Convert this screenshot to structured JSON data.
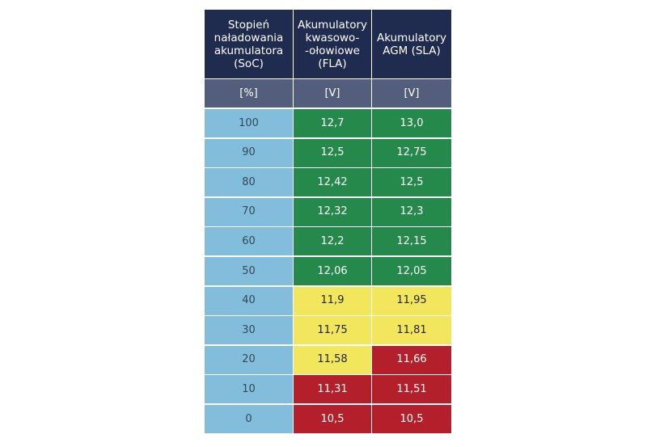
{
  "table": {
    "header": [
      "Stopień\nnaładowania\nakumulatora\n(SoC)",
      "Akumulatory\nkwasowo-\n-ołowiowe\n(FLA)",
      "Akumulatory\nAGM (SLA)"
    ],
    "units": [
      "[%]",
      "[V]",
      "[V]"
    ],
    "rows": [
      [
        "100",
        "12,7",
        "13,0"
      ],
      [
        "90",
        "12,5",
        "12,75"
      ],
      [
        "80",
        "12,42",
        "12,5"
      ],
      [
        "70",
        "12,32",
        "12,3"
      ],
      [
        "60",
        "12,2",
        "12,15"
      ],
      [
        "50",
        "12,06",
        "12,05"
      ],
      [
        "40",
        "11,9",
        "11,95"
      ],
      [
        "30",
        "11,75",
        "11,81"
      ],
      [
        "20",
        "11,58",
        "11,66"
      ],
      [
        "10",
        "11,31",
        "11,51"
      ],
      [
        "0",
        "10,5",
        "10,5"
      ]
    ],
    "row_colors": [
      [
        "#82bedb",
        "#24894a",
        "#24894a"
      ],
      [
        "#82bedb",
        "#24894a",
        "#24894a"
      ],
      [
        "#82bedb",
        "#24894a",
        "#24894a"
      ],
      [
        "#82bedb",
        "#24894a",
        "#24894a"
      ],
      [
        "#82bedb",
        "#24894a",
        "#24894a"
      ],
      [
        "#82bedb",
        "#24894a",
        "#24894a"
      ],
      [
        "#82bedb",
        "#f1e65c",
        "#f1e65c"
      ],
      [
        "#82bedb",
        "#f1e65c",
        "#f1e65c"
      ],
      [
        "#82bedb",
        "#f1e65c",
        "#b3202b"
      ],
      [
        "#82bedb",
        "#b3202b",
        "#b3202b"
      ],
      [
        "#82bedb",
        "#b3202b",
        "#b3202b"
      ]
    ]
  }
}
